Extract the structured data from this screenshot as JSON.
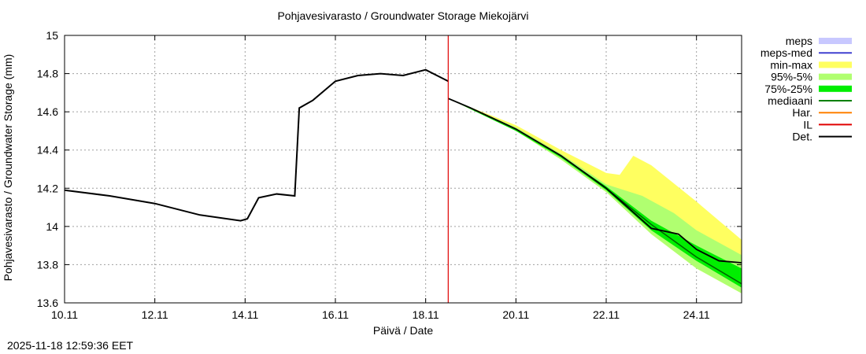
{
  "chart": {
    "title": "Pohjavesivarasto / Groundwater Storage   Miekojärvi",
    "ylabel": "Pohjavesivarasto / Groundwater Storage (mm)",
    "xlabel": "Päivä / Date",
    "timestamp": "2025-11-18 12:59:36 EET"
  },
  "legend": [
    {
      "label": "meps",
      "color": "#c8c8ff",
      "kind": "band"
    },
    {
      "label": "meps-med",
      "color": "#4040d0",
      "kind": "line"
    },
    {
      "label": "min-max",
      "color": "#ffff60",
      "kind": "band"
    },
    {
      "label": "95%-5%",
      "color": "#b0ff70",
      "kind": "band"
    },
    {
      "label": "75%-25%",
      "color": "#00ee00",
      "kind": "band"
    },
    {
      "label": "mediaani",
      "color": "#008000",
      "kind": "line"
    },
    {
      "label": "Har.",
      "color": "#ff8000",
      "kind": "line"
    },
    {
      "label": "IL",
      "color": "#e00000",
      "kind": "line"
    },
    {
      "label": "Det.",
      "color": "#000000",
      "kind": "line"
    }
  ],
  "chart_data": {
    "type": "line",
    "title": "Pohjavesivarasto / Groundwater Storage   Miekojärvi",
    "xlabel": "Päivä / Date",
    "ylabel": "Pohjavesivarasto / Groundwater Storage (mm)",
    "x_ticks": [
      "10.11",
      "12.11",
      "14.11",
      "16.11",
      "18.11",
      "20.11",
      "22.11",
      "24.11"
    ],
    "y_ticks": [
      "13.6",
      "13.8",
      "14",
      "14.2",
      "14.4",
      "14.6",
      "14.8",
      "15"
    ],
    "xlim_days": [
      0,
      15
    ],
    "ylim": [
      13.6,
      15.0
    ],
    "grid": true,
    "legend_position": "right",
    "forecast_start_marker": {
      "label": "IL",
      "x_day": 8.5,
      "color": "#e00000"
    },
    "series": [
      {
        "name": "Det.",
        "x_day": [
          0,
          1,
          2,
          3,
          3.9,
          4.05,
          4.3,
          4.7,
          5.1,
          5.2,
          5.5,
          6.0,
          6.5,
          7.0,
          7.5,
          8.0,
          8.5
        ],
        "values": [
          14.19,
          14.16,
          14.12,
          14.06,
          14.03,
          14.04,
          14.15,
          14.17,
          14.16,
          14.62,
          14.66,
          14.76,
          14.79,
          14.8,
          14.79,
          14.82,
          14.76
        ]
      },
      {
        "name": "mediaani",
        "x_day": [
          8.5,
          9,
          10,
          11,
          12,
          13,
          14,
          15
        ],
        "values": [
          14.67,
          14.62,
          14.51,
          14.37,
          14.2,
          14.01,
          13.84,
          13.7
        ]
      },
      {
        "name": "Det. forecast",
        "x_day": [
          8.5,
          9,
          10,
          11,
          12,
          13,
          13.6,
          14,
          14.5,
          15
        ],
        "values": [
          14.67,
          14.62,
          14.51,
          14.37,
          14.2,
          13.99,
          13.96,
          13.88,
          13.82,
          13.81
        ]
      },
      {
        "name": "min-max upper",
        "x_day": [
          8.5,
          10,
          11,
          12,
          12.3,
          12.6,
          13,
          14,
          15
        ],
        "values": [
          14.67,
          14.53,
          14.4,
          14.28,
          14.27,
          14.37,
          14.32,
          14.13,
          13.93
        ]
      },
      {
        "name": "95%-5% upper",
        "x_day": [
          8.5,
          10,
          11,
          12,
          12.8,
          13.5,
          14,
          15
        ],
        "values": [
          14.67,
          14.52,
          14.38,
          14.22,
          14.16,
          14.07,
          13.98,
          13.85
        ]
      },
      {
        "name": "75%-25% upper",
        "x_day": [
          8.5,
          10,
          11,
          12,
          13,
          14,
          15
        ],
        "values": [
          14.67,
          14.51,
          14.37,
          14.21,
          14.03,
          13.9,
          13.78
        ]
      },
      {
        "name": "75%-25% lower",
        "x_day": [
          8.5,
          10,
          11,
          12,
          13,
          14,
          15
        ],
        "values": [
          14.67,
          14.5,
          14.36,
          14.19,
          13.98,
          13.82,
          13.68
        ]
      },
      {
        "name": "95%-5% lower",
        "x_day": [
          8.5,
          10,
          11,
          12,
          13,
          14,
          15
        ],
        "values": [
          14.67,
          14.5,
          14.35,
          14.18,
          13.96,
          13.78,
          13.65
        ]
      }
    ]
  }
}
